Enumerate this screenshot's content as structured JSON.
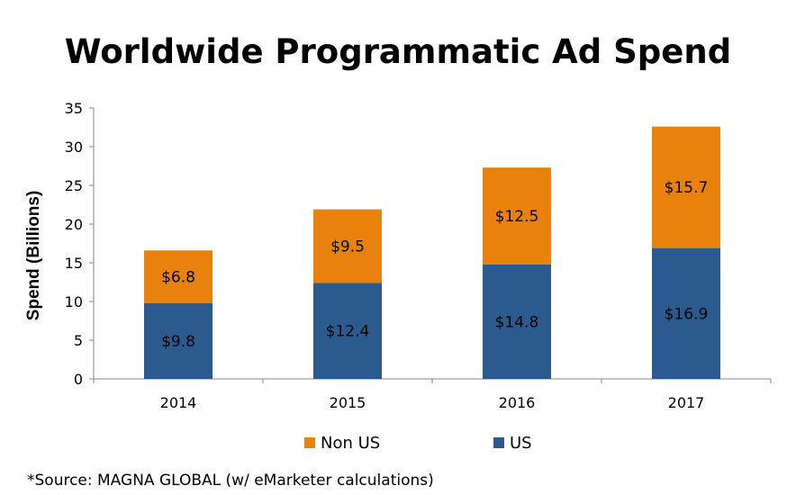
{
  "chart_data": {
    "type": "bar",
    "stacked": true,
    "title": "Worldwide Programmatic Ad Spend",
    "ylabel": "Spend (Billions)",
    "xlabel": "",
    "categories": [
      "2014",
      "2015",
      "2016",
      "2017"
    ],
    "ylim": [
      0,
      35
    ],
    "yticks": [
      0,
      5,
      10,
      15,
      20,
      25,
      30,
      35
    ],
    "grid": false,
    "legend": "bottom",
    "series": [
      {
        "name": "US",
        "color": "#2B5A8F",
        "values": [
          9.8,
          12.4,
          14.8,
          16.9
        ],
        "labels": [
          "$9.8",
          "$12.4",
          "$14.8",
          "$16.9"
        ]
      },
      {
        "name": "Non US",
        "color": "#E8820C",
        "values": [
          6.8,
          9.5,
          12.5,
          15.7
        ],
        "labels": [
          "$6.8",
          "$9.5",
          "$12.5",
          "$15.7"
        ]
      }
    ],
    "legend_order": [
      "Non US",
      "US"
    ],
    "source": "*Source: MAGNA GLOBAL (w/ eMarketer calculations)"
  }
}
